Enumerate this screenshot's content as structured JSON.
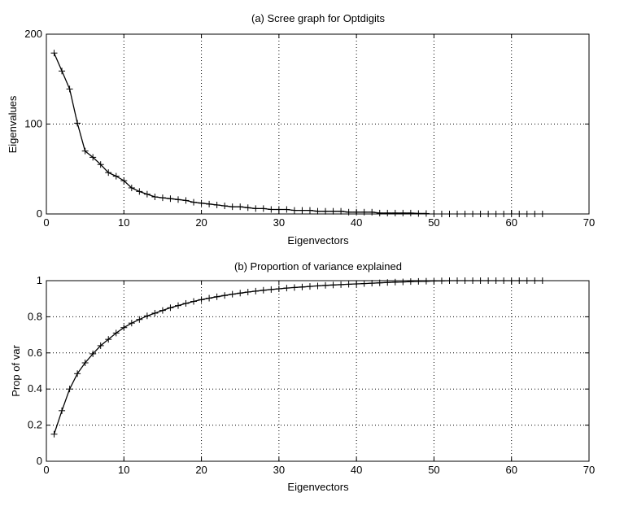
{
  "chart_data": [
    {
      "type": "line",
      "title": "(a) Scree graph for Optdigits",
      "xlabel": "Eigenvectors",
      "ylabel": "Eigenvalues",
      "xlim": [
        0,
        70
      ],
      "ylim": [
        0,
        200
      ],
      "xticks": [
        "0",
        "10",
        "20",
        "30",
        "40",
        "50",
        "60",
        "70"
      ],
      "yticks": [
        "0",
        "100",
        "200"
      ],
      "grid": true,
      "marker": "+",
      "line_color": "#000000",
      "line_until_x": 49,
      "series": [
        {
          "x": [
            1,
            2,
            3,
            4,
            5,
            6,
            7,
            8,
            9,
            10,
            11,
            12,
            13,
            14,
            15,
            16,
            17,
            18,
            19,
            20,
            21,
            22,
            23,
            24,
            25,
            26,
            27,
            28,
            29,
            30,
            31,
            32,
            33,
            34,
            35,
            36,
            37,
            38,
            39,
            40,
            41,
            42,
            43,
            44,
            45,
            46,
            47,
            48,
            49,
            50,
            51,
            52,
            53,
            54,
            55,
            56,
            57,
            58,
            59,
            60,
            61,
            62,
            63,
            64
          ],
          "values": [
            179,
            159,
            139,
            101,
            70,
            63,
            55,
            46,
            42,
            37,
            29,
            25,
            22,
            19,
            18,
            17,
            16,
            15,
            13,
            12,
            11,
            10,
            9,
            8,
            8,
            7,
            6,
            6,
            5,
            5,
            5,
            4,
            4,
            4,
            3,
            3,
            3,
            3,
            2,
            2,
            2,
            2,
            1,
            1,
            1,
            1,
            1,
            0.5,
            0.5,
            0,
            0,
            0,
            0,
            0,
            0,
            0,
            0,
            0,
            0,
            0,
            0,
            0,
            0,
            0
          ]
        }
      ]
    },
    {
      "type": "line",
      "title": "(b) Proportion of variance explained",
      "xlabel": "Eigenvectors",
      "ylabel": "Prop of var",
      "xlim": [
        0,
        70
      ],
      "ylim": [
        0,
        1
      ],
      "xticks": [
        "0",
        "10",
        "20",
        "30",
        "40",
        "50",
        "60",
        "70"
      ],
      "yticks": [
        "0",
        "0.2",
        "0.4",
        "0.6",
        "0.8",
        "1"
      ],
      "grid": true,
      "marker": "+",
      "line_color": "#000000",
      "series": [
        {
          "x": [
            1,
            2,
            3,
            4,
            5,
            6,
            7,
            8,
            9,
            10,
            11,
            12,
            13,
            14,
            15,
            16,
            17,
            18,
            19,
            20,
            21,
            22,
            23,
            24,
            25,
            26,
            27,
            28,
            29,
            30,
            31,
            32,
            33,
            34,
            35,
            36,
            37,
            38,
            39,
            40,
            41,
            42,
            43,
            44,
            45,
            46,
            47,
            48,
            49,
            50,
            51,
            52,
            53,
            54,
            55,
            56,
            57,
            58,
            59,
            60,
            61,
            62,
            63,
            64
          ],
          "values": [
            0.15,
            0.28,
            0.4,
            0.485,
            0.545,
            0.595,
            0.64,
            0.675,
            0.71,
            0.74,
            0.765,
            0.785,
            0.805,
            0.82,
            0.835,
            0.85,
            0.862,
            0.874,
            0.885,
            0.895,
            0.903,
            0.911,
            0.918,
            0.925,
            0.931,
            0.937,
            0.942,
            0.947,
            0.951,
            0.955,
            0.959,
            0.962,
            0.965,
            0.968,
            0.971,
            0.974,
            0.976,
            0.978,
            0.98,
            0.982,
            0.984,
            0.986,
            0.988,
            0.99,
            0.992,
            0.993,
            0.995,
            0.996,
            0.997,
            0.998,
            0.999,
            1,
            1,
            1,
            1,
            1,
            1,
            1,
            1,
            1,
            1,
            1,
            1,
            1
          ]
        }
      ]
    }
  ]
}
